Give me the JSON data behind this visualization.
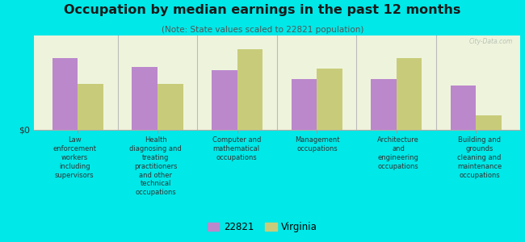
{
  "title": "Occupation by median earnings in the past 12 months",
  "subtitle": "(Note: State values scaled to 22821 population)",
  "categories": [
    "Law\nenforcement\nworkers\nincluding\nsupervisors",
    "Health\ndiagnosing and\ntreating\npractitioners\nand other\ntechnical\noccupations",
    "Computer and\nmathematical\noccupations",
    "Management\noccupations",
    "Architecture\nand\nengineering\noccupations",
    "Building and\ngrounds\ncleaning and\nmaintenance\noccupations"
  ],
  "values_22821": [
    0.82,
    0.72,
    0.68,
    0.58,
    0.58,
    0.5
  ],
  "values_virginia": [
    0.52,
    0.52,
    0.92,
    0.7,
    0.82,
    0.16
  ],
  "color_22821": "#bb88cc",
  "color_virginia": "#c8cc7a",
  "background_outer": "#00e8e8",
  "background_plot": "#eef4dc",
  "bar_width": 0.32,
  "legend_label_22821": "22821",
  "legend_label_virginia": "Virginia",
  "ylabel": "$0",
  "watermark": "City-Data.com",
  "title_color": "#1a1a1a",
  "subtitle_color": "#555555",
  "label_color": "#333333"
}
